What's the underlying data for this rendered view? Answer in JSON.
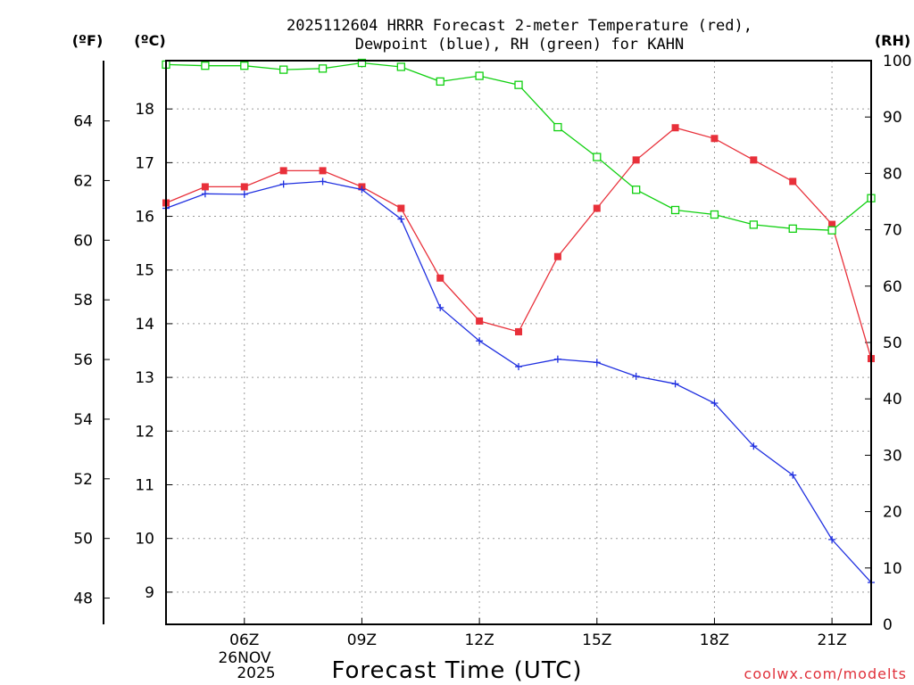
{
  "chart_data": {
    "type": "line",
    "title_line1": "2025112604 HRRR Forecast 2-meter Temperature (red),",
    "title_line2": "Dewpoint (blue), RH (green) for KAHN",
    "xlabel": "Forecast Time (UTC)",
    "date_line1": "26NOV",
    "date_line2": "2025",
    "credit": "coolwx.com/modelts",
    "credit_color": "#e0303a",
    "units": {
      "fahrenheit": "(ºF)",
      "celsius": "(ºC)",
      "rh": "(RH)"
    },
    "x_range_hours": [
      4,
      22
    ],
    "x_ticks": [
      {
        "hour": 6,
        "label": "06Z"
      },
      {
        "hour": 9,
        "label": "09Z"
      },
      {
        "hour": 12,
        "label": "12Z"
      },
      {
        "hour": 15,
        "label": "15Z"
      },
      {
        "hour": 18,
        "label": "18Z"
      },
      {
        "hour": 21,
        "label": "21Z"
      }
    ],
    "celsius_range": [
      8.4,
      18.9
    ],
    "celsius_ticks": [
      9,
      10,
      11,
      12,
      13,
      14,
      15,
      16,
      17,
      18
    ],
    "fahrenheit_ticks": [
      48,
      50,
      52,
      54,
      56,
      58,
      60,
      62,
      64
    ],
    "rh_range": [
      0,
      100
    ],
    "rh_ticks": [
      0,
      10,
      20,
      30,
      40,
      50,
      60,
      70,
      80,
      90,
      100
    ],
    "grid": true,
    "x": [
      4,
      5,
      6,
      7,
      8,
      9,
      10,
      11,
      12,
      13,
      14,
      15,
      16,
      17,
      18,
      19,
      20,
      21,
      22
    ],
    "series": [
      {
        "name": "Temperature",
        "axis": "celsius",
        "color": "#e8303a",
        "marker": "filled-square",
        "values": [
          16.25,
          16.55,
          16.55,
          16.85,
          16.85,
          16.55,
          16.15,
          14.85,
          14.05,
          13.85,
          15.25,
          16.15,
          17.05,
          17.65,
          17.45,
          17.05,
          16.65,
          15.85,
          13.35
        ]
      },
      {
        "name": "Dewpoint",
        "axis": "celsius",
        "color": "#2030e0",
        "marker": "plus",
        "values": [
          16.15,
          16.42,
          16.41,
          16.6,
          16.65,
          16.5,
          15.95,
          14.3,
          13.68,
          13.2,
          13.34,
          13.28,
          13.02,
          12.88,
          12.52,
          11.72,
          11.18,
          9.98,
          9.18
        ]
      },
      {
        "name": "RH",
        "axis": "rh",
        "color": "#10d010",
        "marker": "open-square",
        "values": [
          99.3,
          99.1,
          99.1,
          98.4,
          98.6,
          99.6,
          98.9,
          96.3,
          97.3,
          95.7,
          88.2,
          82.9,
          77.1,
          73.5,
          72.7,
          70.9,
          70.2,
          69.9,
          75.6
        ]
      }
    ]
  }
}
